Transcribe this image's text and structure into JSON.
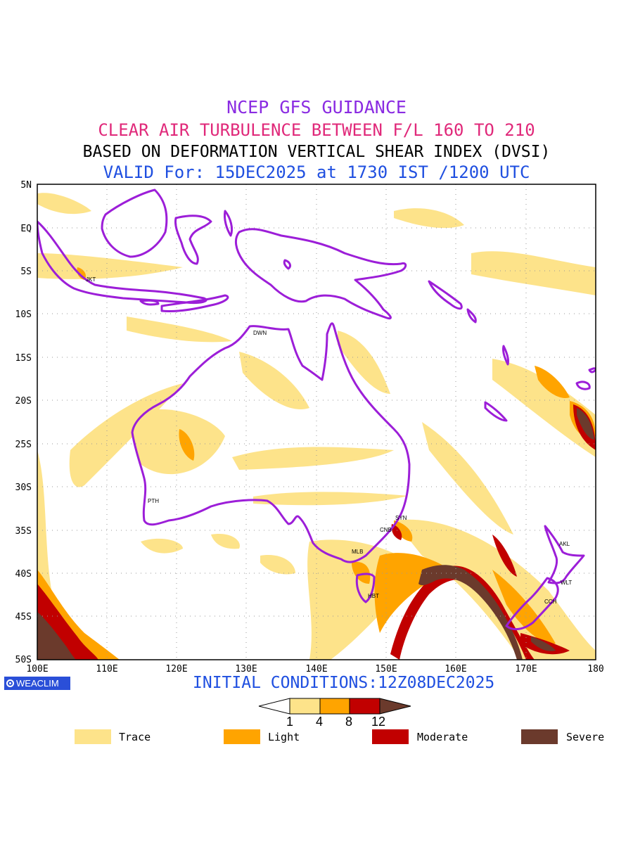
{
  "header": {
    "line1": "NCEP GFS GUIDANCE",
    "line2": "CLEAR AIR TURBULENCE BETWEEN F/L 160 TO 210",
    "line3": "BASED ON DEFORMATION VERTICAL SHEAR INDEX (DVSI)",
    "line4": "VALID For: 15DEC2025 at 1730 IST /1200 UTC"
  },
  "colors": {
    "title1": "#8a2be2",
    "title2": "#e0297a",
    "title3": "#000000",
    "title4": "#1f4fe0",
    "coast": "#9c1ed8",
    "trace": "#fde38a",
    "light": "#ffa400",
    "moderate": "#c10000",
    "severe": "#6b3a2c",
    "grid": "#9a9a9a"
  },
  "map": {
    "lat_labels": [
      "5N",
      "EQ",
      "5S",
      "10S",
      "15S",
      "20S",
      "25S",
      "30S",
      "35S",
      "40S",
      "45S",
      "50S"
    ],
    "lon_labels": [
      "100E",
      "110E",
      "120E",
      "130E",
      "140E",
      "150E",
      "160E",
      "170E",
      "180"
    ],
    "cities": [
      "JKT",
      "DWN",
      "PTH",
      "SYN",
      "CNB",
      "MLB",
      "HBT",
      "AKL",
      "WLT",
      "CCH"
    ]
  },
  "footer": {
    "badge": "WEACLIM",
    "initial_conditions": "INITIAL CONDITIONS:12Z08DEC2025"
  },
  "colorbar": {
    "ticks": [
      "1",
      "4",
      "8",
      "12"
    ]
  },
  "legend": [
    {
      "label": "Trace",
      "color": "#fde38a"
    },
    {
      "label": "Light",
      "color": "#ffa400"
    },
    {
      "label": "Moderate",
      "color": "#c10000"
    },
    {
      "label": "Severe",
      "color": "#6b3a2c"
    }
  ]
}
